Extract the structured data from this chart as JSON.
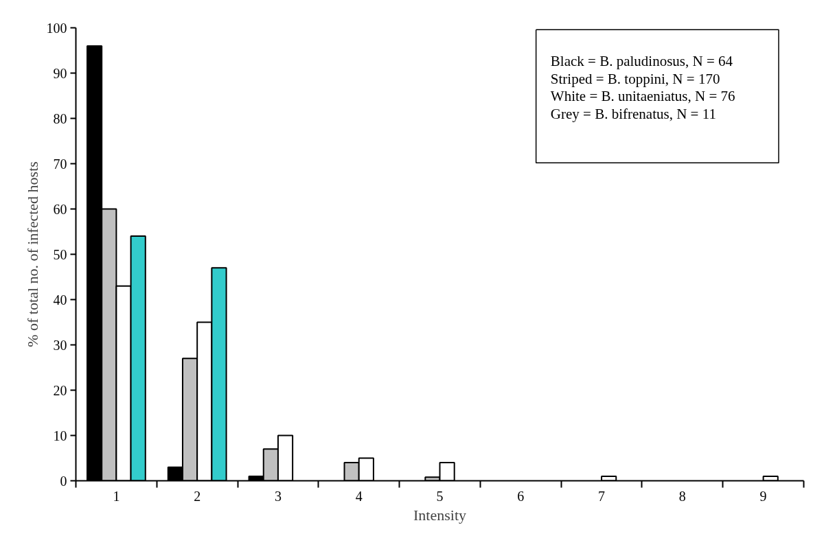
{
  "chart_data": {
    "type": "bar",
    "xlabel": "Intensity",
    "ylabel": "% of total no. of infected hosts",
    "categories": [
      "1",
      "2",
      "3",
      "4",
      "5",
      "6",
      "7",
      "8",
      "9"
    ],
    "series": [
      {
        "color": "#000000",
        "values": [
          96,
          3,
          1,
          0,
          0,
          0,
          0,
          0,
          0
        ]
      },
      {
        "color": "#c0c0c0",
        "values": [
          60,
          27,
          7,
          4,
          0.8,
          0,
          0,
          0,
          0
        ]
      },
      {
        "color": "#ffffff",
        "values": [
          43,
          35,
          10,
          5,
          4,
          0,
          1,
          0,
          1
        ]
      },
      {
        "color": "#33cccc",
        "values": [
          54,
          47,
          0,
          0,
          0,
          0,
          0,
          0,
          0
        ]
      }
    ],
    "ylim": [
      0,
      100
    ],
    "yticks": [
      0,
      10,
      20,
      30,
      40,
      50,
      60,
      70,
      80,
      90,
      100
    ],
    "grid": false,
    "annotations": [
      "Black = B. paludinosus, N = 64",
      "Striped = B. toppini, N = 170",
      "White = B. unitaeniatus, N = 76",
      "Grey = B. bifrenatus, N = 11"
    ]
  }
}
